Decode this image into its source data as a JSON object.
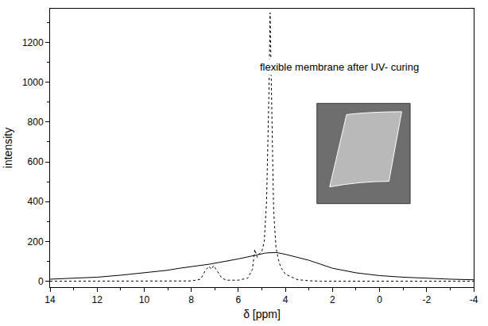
{
  "chart_data": {
    "type": "line",
    "x_label": "δ [ppm]",
    "y_label": "intensity",
    "annotations": [
      "flexible membrane after UV- curing"
    ],
    "x": [
      14,
      13,
      12,
      11,
      10,
      9,
      8.5,
      8,
      7.6,
      7.4,
      7.25,
      7.15,
      7.05,
      6.9,
      6.7,
      6.5,
      6,
      5.6,
      5.4,
      5.3,
      5.2,
      5.1,
      5.0,
      4.9,
      4.8,
      4.7,
      4.65,
      4.6,
      4.5,
      4.4,
      4.3,
      4.2,
      4.0,
      3.5,
      3,
      2.5,
      2,
      1,
      0,
      -1,
      -2,
      -3,
      -4
    ],
    "series": [
      {
        "color": "#000000",
        "line_style": "solid",
        "values": [
          10,
          14,
          20,
          30,
          42,
          55,
          65,
          72,
          78,
          82,
          85,
          87,
          89,
          92,
          96,
          100,
          112,
          122,
          128,
          130,
          133,
          136,
          138,
          140,
          142,
          143,
          144,
          144,
          145,
          144,
          142,
          140,
          135,
          120,
          105,
          85,
          65,
          42,
          28,
          20,
          14,
          10,
          7
        ]
      },
      {
        "color": "#000000",
        "line_style": "dot",
        "values": [
          0,
          0,
          0,
          0,
          0,
          0,
          0,
          1,
          10,
          55,
          75,
          60,
          78,
          50,
          15,
          5,
          5,
          15,
          60,
          160,
          120,
          140,
          150,
          200,
          400,
          950,
          1350,
          1000,
          350,
          170,
          110,
          70,
          35,
          8,
          2,
          0,
          0,
          0,
          0,
          0,
          0,
          0,
          0
        ]
      }
    ],
    "xlim": [
      14,
      -4
    ],
    "xticks": [
      14,
      12,
      10,
      8,
      6,
      4,
      2,
      0,
      -2,
      -4
    ],
    "ylim": [
      -30,
      1370
    ],
    "yticks": [
      0,
      200,
      400,
      600,
      800,
      1000,
      1200
    ],
    "grid": false
  }
}
